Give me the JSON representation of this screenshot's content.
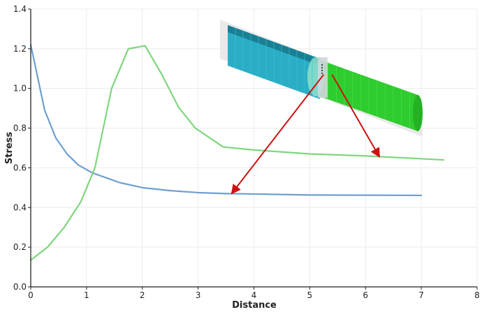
{
  "chart_data": {
    "type": "line",
    "title": "",
    "xlabel": "Distance",
    "ylabel": "Stress",
    "xlim": [
      0,
      8
    ],
    "ylim": [
      0,
      1.4
    ],
    "xticks": [
      "0",
      "1",
      "2",
      "3",
      "4",
      "5",
      "6",
      "7",
      "8"
    ],
    "yticks": [
      "0.0",
      "0.2",
      "0.4",
      "0.6",
      "0.8",
      "1.0",
      "1.2",
      "1.4"
    ],
    "grid": true,
    "legend": "none",
    "series": [
      {
        "color": "#6f9fcf",
        "x": [
          0,
          0.25,
          0.45,
          0.65,
          0.85,
          1.1,
          1.4,
          1.6,
          2.0,
          2.5,
          3.0,
          3.5,
          4.0,
          5.0,
          6.0,
          7.0
        ],
        "y": [
          1.22,
          0.89,
          0.75,
          0.67,
          0.615,
          0.575,
          0.545,
          0.525,
          0.5,
          0.485,
          0.475,
          0.47,
          0.468,
          0.463,
          0.462,
          0.461
        ]
      },
      {
        "color": "#7fd67f",
        "x": [
          0,
          0.3,
          0.6,
          0.9,
          1.15,
          1.45,
          1.75,
          2.05,
          2.35,
          2.65,
          2.95,
          3.45,
          4.0,
          5.0,
          6.0,
          7.4
        ],
        "y": [
          0.135,
          0.2,
          0.3,
          0.43,
          0.6,
          1.0,
          1.2,
          1.215,
          1.07,
          0.905,
          0.8,
          0.705,
          0.69,
          0.67,
          0.66,
          0.64
        ]
      }
    ],
    "annotations": [
      {
        "type": "arrow",
        "color": "#cc1111",
        "from": [
          5.25,
          1.07
        ],
        "to": [
          3.6,
          0.47
        ]
      },
      {
        "type": "arrow",
        "color": "#cc1111",
        "from": [
          5.4,
          1.07
        ],
        "to": [
          6.25,
          0.655
        ]
      }
    ]
  },
  "inset": {
    "colors": {
      "cyan_mesh": "#2aaec6",
      "green_mesh": "#2ecc2e",
      "backdrop": "#e8e8e8",
      "collar": "#cfd6dc"
    }
  }
}
